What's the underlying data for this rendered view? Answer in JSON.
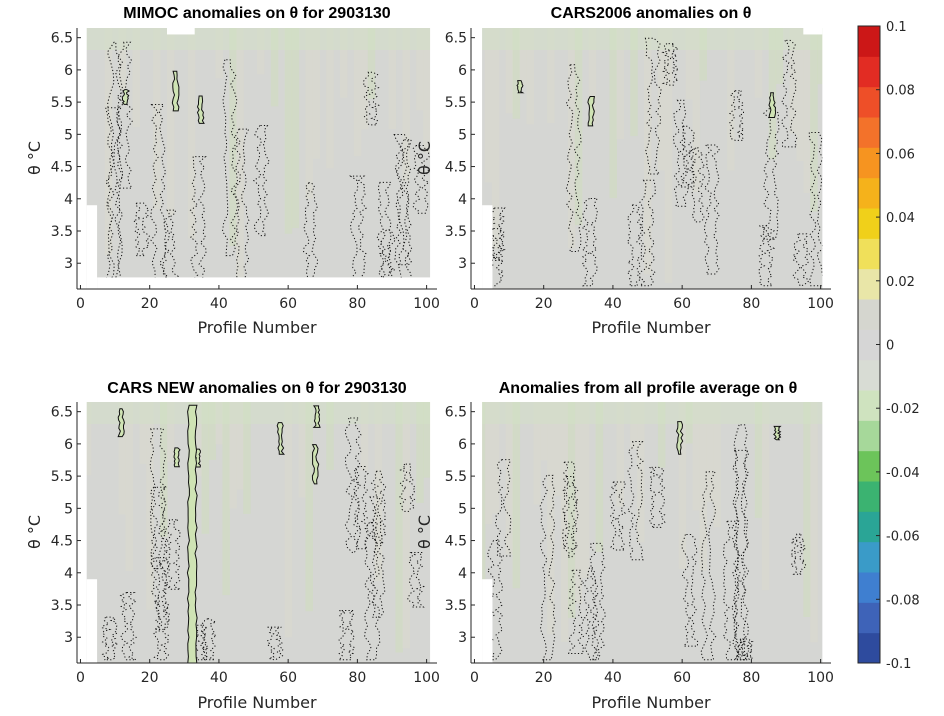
{
  "chart_data": [
    {
      "type": "heatmap",
      "title": "MIMOC anomalies on θ  for 2903130",
      "xlabel": "Profile Number",
      "ylabel": "θ °C",
      "xlim": [
        -1,
        103
      ],
      "ylim": [
        2.6,
        6.65
      ],
      "xticks": [
        0,
        20,
        40,
        60,
        80,
        100
      ],
      "yticks": [
        3,
        3.5,
        4,
        4.5,
        5,
        5.5,
        6,
        6.5
      ],
      "colormap_range": [
        -0.1,
        0.1
      ],
      "field_value_range": [
        -0.02,
        0.02
      ],
      "contour_levels": [
        -0.01,
        0,
        0.01
      ],
      "missing_data_regions": [
        {
          "x0": -1,
          "x1": 1.8,
          "y0": 2.6,
          "y1": 6.65
        },
        {
          "x0": 1.8,
          "x1": 4.8,
          "y0": 2.6,
          "y1": 3.9
        },
        {
          "x0": 4.8,
          "x1": 103,
          "y0": 2.6,
          "y1": 2.78
        },
        {
          "x0": 101,
          "x1": 103,
          "y0": 2.6,
          "y1": 6.65
        },
        {
          "x0": 25,
          "x1": 33,
          "y0": 6.55,
          "y1": 6.65
        }
      ],
      "seed": 11,
      "solid_contours": 3
    },
    {
      "type": "heatmap",
      "title": "CARS2006 anomalies on θ",
      "xlabel": "Profile Number",
      "ylabel": "",
      "xlim": [
        -1,
        103
      ],
      "ylim": [
        2.6,
        6.65
      ],
      "xticks": [
        0,
        20,
        40,
        60,
        80,
        100
      ],
      "yticks": [
        3,
        3.5,
        4,
        4.5,
        5,
        5.5,
        6,
        6.5
      ],
      "colormap_range": [
        -0.1,
        0.1
      ],
      "field_value_range": [
        -0.02,
        0.02
      ],
      "contour_levels": [
        -0.01,
        0,
        0.01
      ],
      "missing_data_regions": [
        {
          "x0": -1,
          "x1": 2.2,
          "y0": 2.6,
          "y1": 6.65
        },
        {
          "x0": 2.2,
          "x1": 5.2,
          "y0": 2.6,
          "y1": 3.9
        },
        {
          "x0": 100.5,
          "x1": 103,
          "y0": 2.6,
          "y1": 6.65
        },
        {
          "x0": 95,
          "x1": 100.5,
          "y0": 6.55,
          "y1": 6.65
        }
      ],
      "seed": 23,
      "solid_contours": 3
    },
    {
      "type": "heatmap",
      "title": "CARS NEW anomalies on θ for 2903130",
      "xlabel": "Profile Number",
      "ylabel": "θ °C",
      "xlim": [
        -1,
        103
      ],
      "ylim": [
        2.6,
        6.65
      ],
      "xticks": [
        0,
        20,
        40,
        60,
        80,
        100
      ],
      "yticks": [
        3,
        3.5,
        4,
        4.5,
        5,
        5.5,
        6,
        6.5
      ],
      "colormap_range": [
        -0.1,
        0.1
      ],
      "field_value_range": [
        -0.02,
        0.02
      ],
      "contour_levels": [
        -0.01,
        0,
        0.01
      ],
      "missing_data_regions": [
        {
          "x0": -1,
          "x1": 1.8,
          "y0": 2.6,
          "y1": 6.65
        },
        {
          "x0": 1.8,
          "x1": 4.8,
          "y0": 2.6,
          "y1": 3.9
        },
        {
          "x0": 101,
          "x1": 103,
          "y0": 2.6,
          "y1": 6.65
        }
      ],
      "seed": 37,
      "solid_contours": 6
    },
    {
      "type": "heatmap",
      "title": "Anomalies from all profile average on θ",
      "xlabel": "Profile Number",
      "ylabel": "",
      "xlim": [
        -1,
        103
      ],
      "ylim": [
        2.6,
        6.65
      ],
      "xticks": [
        0,
        20,
        40,
        60,
        80,
        100
      ],
      "yticks": [
        3,
        3.5,
        4,
        4.5,
        5,
        5.5,
        6,
        6.5
      ],
      "colormap_range": [
        -0.1,
        0.1
      ],
      "field_value_range": [
        -0.02,
        0.02
      ],
      "contour_levels": [
        -0.01,
        0,
        0.01
      ],
      "missing_data_regions": [
        {
          "x0": -1,
          "x1": 2.2,
          "y0": 2.6,
          "y1": 6.65
        },
        {
          "x0": 2.2,
          "x1": 5.2,
          "y0": 2.6,
          "y1": 3.9
        },
        {
          "x0": 100.5,
          "x1": 103,
          "y0": 2.6,
          "y1": 6.65
        }
      ],
      "seed": 51,
      "solid_contours": 2
    }
  ],
  "colorbar": {
    "ticks": [
      "0.1",
      "0.08",
      "0.06",
      "0.04",
      "0.02",
      "0",
      "-0.02",
      "-0.04",
      "-0.06",
      "-0.08",
      "-0.1"
    ],
    "range": [
      -0.1,
      0.1
    ],
    "colors": [
      "#2e4b9e",
      "#3e63b8",
      "#3f7fd0",
      "#3a9bc8",
      "#2aa596",
      "#3bb371",
      "#6cc45a",
      "#a6d89a",
      "#cfe3bf",
      "#d8dcd4",
      "#d6d6d6",
      "#d5d6cf",
      "#e9e6a8",
      "#f0e05a",
      "#f0d01a",
      "#f5b21b",
      "#f69420",
      "#f3722a",
      "#ee4f28",
      "#e22c23",
      "#cc1717"
    ]
  }
}
